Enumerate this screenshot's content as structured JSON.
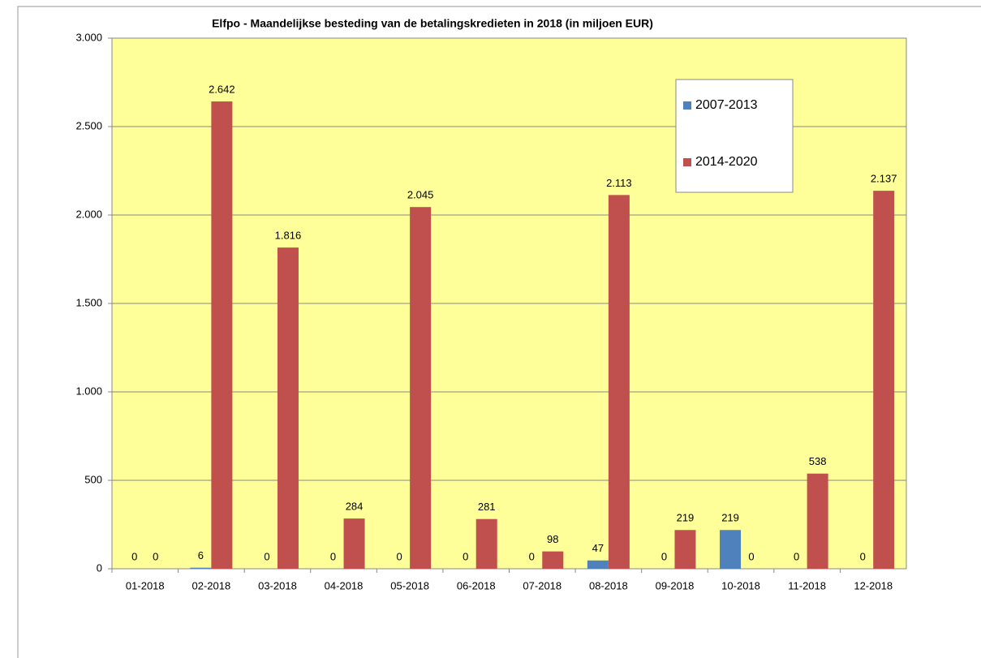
{
  "chart_data": {
    "type": "bar",
    "title": "Elfpo - Maandelijkse besteding van de betalingskredieten in 2018  (in miljoen EUR)",
    "categories": [
      "01-2018",
      "02-2018",
      "03-2018",
      "04-2018",
      "05-2018",
      "06-2018",
      "07-2018",
      "08-2018",
      "09-2018",
      "10-2018",
      "11-2018",
      "12-2018"
    ],
    "series": [
      {
        "name": "2007-2013",
        "color": "#4f81bd",
        "values": [
          0,
          6,
          0,
          0,
          0,
          0,
          0,
          47,
          0,
          219,
          0,
          0
        ]
      },
      {
        "name": "2014-2020",
        "color": "#c0504d",
        "values": [
          0,
          2642,
          1816,
          284,
          2045,
          281,
          98,
          2113,
          219,
          0,
          538,
          2137
        ],
        "value_labels": [
          "0",
          "2.642",
          "1.816",
          "284",
          "2.045",
          "281",
          "98",
          "2.113",
          "219",
          "0",
          "538",
          "2.137"
        ]
      }
    ],
    "ylim": [
      0,
      3000
    ],
    "yticks": [
      0,
      500,
      {
        "value": 1000,
        "label": "1.000"
      },
      {
        "value": 1500,
        "label": "1.500"
      },
      {
        "value": 2000,
        "label": "2.000"
      },
      {
        "value": 2500,
        "label": "2.500"
      },
      {
        "value": 3000,
        "label": "3.000"
      }
    ],
    "grid": true,
    "plot_background": "#ffff99"
  }
}
